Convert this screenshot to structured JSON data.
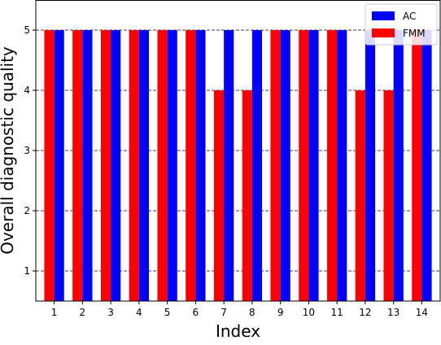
{
  "chart_data": {
    "type": "bar",
    "title": "",
    "xlabel": "Index",
    "ylabel": "Overall diagnostic quality",
    "categories": [
      "1",
      "2",
      "3",
      "4",
      "5",
      "6",
      "7",
      "8",
      "9",
      "10",
      "11",
      "12",
      "13",
      "14"
    ],
    "series": [
      {
        "name": "FMM",
        "color": "#ff0000",
        "values": [
          5,
          5,
          5,
          5,
          5,
          5,
          4,
          4,
          5,
          5,
          5,
          4,
          4,
          5
        ]
      },
      {
        "name": "AC",
        "color": "#0000ff",
        "values": [
          5,
          5,
          5,
          5,
          5,
          5,
          5,
          5,
          5,
          5,
          5,
          5,
          5,
          5
        ]
      }
    ],
    "legend_order": [
      "AC",
      "FMM"
    ],
    "ylim": [
      0.5,
      5.5
    ],
    "yticks": [
      1,
      2,
      3,
      4,
      5
    ],
    "grid": "horizontal dashed",
    "legend_position": "top-right"
  }
}
